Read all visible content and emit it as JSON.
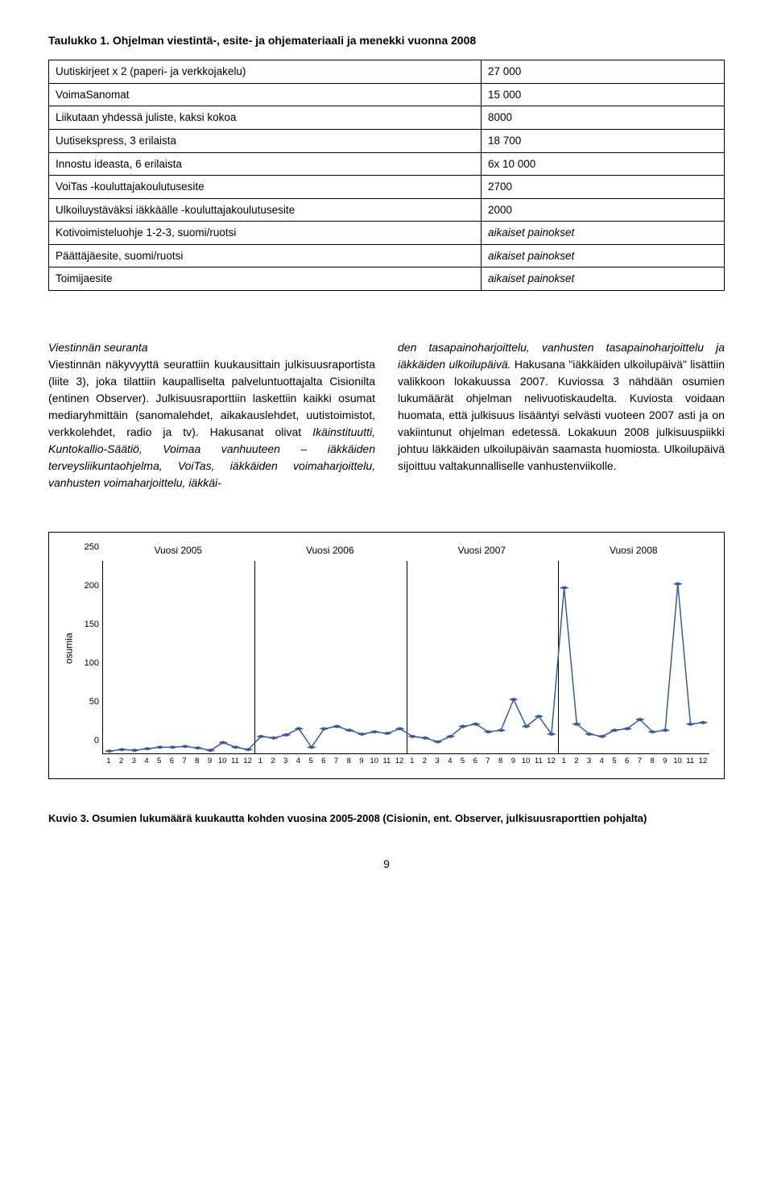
{
  "table": {
    "title": "Taulukko 1. Ohjelman viestintä-, esite- ja ohjemateriaali ja menekki vuonna 2008",
    "rows": [
      {
        "label": "Uutiskirjeet x 2 (paperi- ja verkkojakelu)",
        "value": "27 000",
        "italic": false
      },
      {
        "label": "VoimaSanomat",
        "value": "15 000",
        "italic": false
      },
      {
        "label": "Liikutaan yhdessä juliste, kaksi kokoa",
        "value": "8000",
        "italic": false
      },
      {
        "label": "Uutisekspress, 3 erilaista",
        "value": "18 700",
        "italic": false
      },
      {
        "label": "Innostu ideasta, 6 erilaista",
        "value": "6x 10 000",
        "italic": false
      },
      {
        "label": "VoiTas -kouluttajakoulutusesite",
        "value": "2700",
        "italic": false
      },
      {
        "label": "Ulkoiluystäväksi iäkkäälle -kouluttajakoulutusesite",
        "value": "2000",
        "italic": false
      },
      {
        "label": "Kotivoimisteluohje 1-2-3, suomi/ruotsi",
        "value": "aikaiset painokset",
        "italic": true
      },
      {
        "label": "Päättäjäesite, suomi/ruotsi",
        "value": "aikaiset painokset",
        "italic": true
      },
      {
        "label": "Toimijaesite",
        "value": "aikaiset painokset",
        "italic": true
      }
    ]
  },
  "body": {
    "col1_heading": "Viestinnän seuranta",
    "col1_p1": "Viestinnän näkyvyyttä seurattiin kuukausittain julkisuusraportista (liite 3), joka tilattiin kaupalliselta palveluntuottajalta Cisionilta (entinen Observer). Julkisuusraporttiin laskettiin kaikki osumat mediaryhmittäin (sanomalehdet, aikakauslehdet, uutistoimistot, verkkolehdet, radio ja tv). Hakusanat olivat ",
    "col1_em": "Ikäinstituutti, Kuntokallio-Säätiö, Voimaa vanhuuteen – iäkkäiden terveysliikuntaohjelma, VoiTas, iäkkäiden voimaharjoittelu, vanhusten voimaharjoittelu, iäkkäi-",
    "col2_em": "den tasapainoharjoittelu, vanhusten tasapainoharjoittelu ja iäkkäiden ulkoilupäivä.",
    "col2_p": " Hakusana \"iäkkäiden ulkoilupäivä\" lisättiin valikkoon lokakuussa 2007. Kuviossa 3 nähdään osumien lukumäärät ohjelman nelivuotiskaudelta. Kuviosta voidaan huomata, että julkisuus lisääntyi selvästi vuoteen 2007 asti ja on vakiintunut ohjelman edetessä. Lokakuun 2008 julkisuuspiikki johtuu läkkäiden ulkoilupäivän saamasta huomiosta. Ulkoilupäivä sijoittuu valtakunnalliselle vanhustenviikolle."
  },
  "chart": {
    "y_label": "osumia",
    "y_max": 250,
    "y_ticks": [
      0,
      50,
      100,
      150,
      200,
      250
    ],
    "years": [
      "Vuosi 2005",
      "Vuosi 2006",
      "Vuosi 2007",
      "Vuosi 2008"
    ],
    "months": [
      "1",
      "2",
      "3",
      "4",
      "5",
      "6",
      "7",
      "8",
      "9",
      "10",
      "11",
      "12"
    ],
    "line_color": "#3a5a9c",
    "marker_color": "#3a5a9c",
    "background_color": "#ffffff",
    "values": [
      3,
      5,
      4,
      6,
      8,
      8,
      9,
      7,
      4,
      14,
      8,
      5,
      22,
      20,
      24,
      32,
      8,
      32,
      35,
      30,
      25,
      28,
      26,
      32,
      22,
      20,
      15,
      22,
      35,
      38,
      28,
      30,
      70,
      35,
      48,
      25,
      215,
      38,
      25,
      22,
      30,
      32,
      44,
      28,
      30,
      220,
      38,
      40
    ]
  },
  "caption": "Kuvio 3. Osumien lukumäärä kuukautta kohden vuosina 2005-2008 (Cisionin, ent. Observer, julkisuusraporttien pohjalta)",
  "page_number": "9"
}
